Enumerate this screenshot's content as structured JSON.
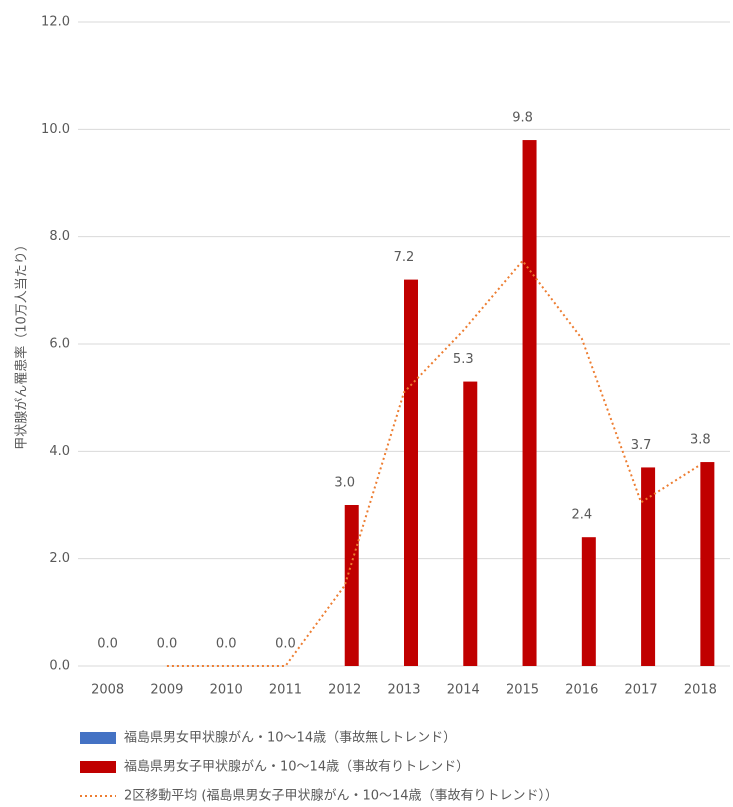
{
  "chart_data": {
    "type": "bar",
    "y_label": "甲状腺がん罹患率（10万人当たり）",
    "categories": [
      "2008",
      "2009",
      "2010",
      "2011",
      "2012",
      "2013",
      "2014",
      "2015",
      "2016",
      "2017",
      "2018"
    ],
    "series": [
      {
        "name": "福島県男女甲状腺がん・10〜14歳（事故無しトレンド）",
        "color": "#4472c4",
        "type": "bar",
        "values": [
          null,
          null,
          null,
          null,
          null,
          null,
          null,
          null,
          null,
          null,
          null
        ]
      },
      {
        "name": "福島県男女子甲状腺がん・10〜14歳（事故有りトレンド）",
        "color": "#c00000",
        "type": "bar",
        "values": [
          0,
          0,
          0,
          0,
          3.0,
          7.2,
          5.3,
          9.8,
          2.4,
          3.7,
          3.8
        ],
        "value_labels": [
          "0.0",
          "0.0",
          "0.0",
          "0.0",
          "3.0",
          "7.2",
          "5.3",
          "9.8",
          "2.4",
          "3.7",
          "3.8"
        ]
      },
      {
        "name": "2区移動平均 (福島県男女子甲状腺がん・10〜14歳（事故有りトレンド））",
        "color": "#ed7d31",
        "type": "line",
        "values": [
          null,
          0,
          0,
          0,
          1.5,
          5.1,
          6.25,
          7.55,
          6.1,
          3.05,
          3.75
        ]
      }
    ],
    "ylim": [
      0,
      12
    ],
    "yticks": [
      {
        "value": 0,
        "label": "0.0"
      },
      {
        "value": 2,
        "label": "2.0"
      },
      {
        "value": 4,
        "label": "4.0"
      },
      {
        "value": 6,
        "label": "6.0"
      },
      {
        "value": 8,
        "label": "8.0"
      },
      {
        "value": 10,
        "label": "10.0"
      },
      {
        "value": 12,
        "label": "12.0"
      }
    ],
    "grid": true
  }
}
